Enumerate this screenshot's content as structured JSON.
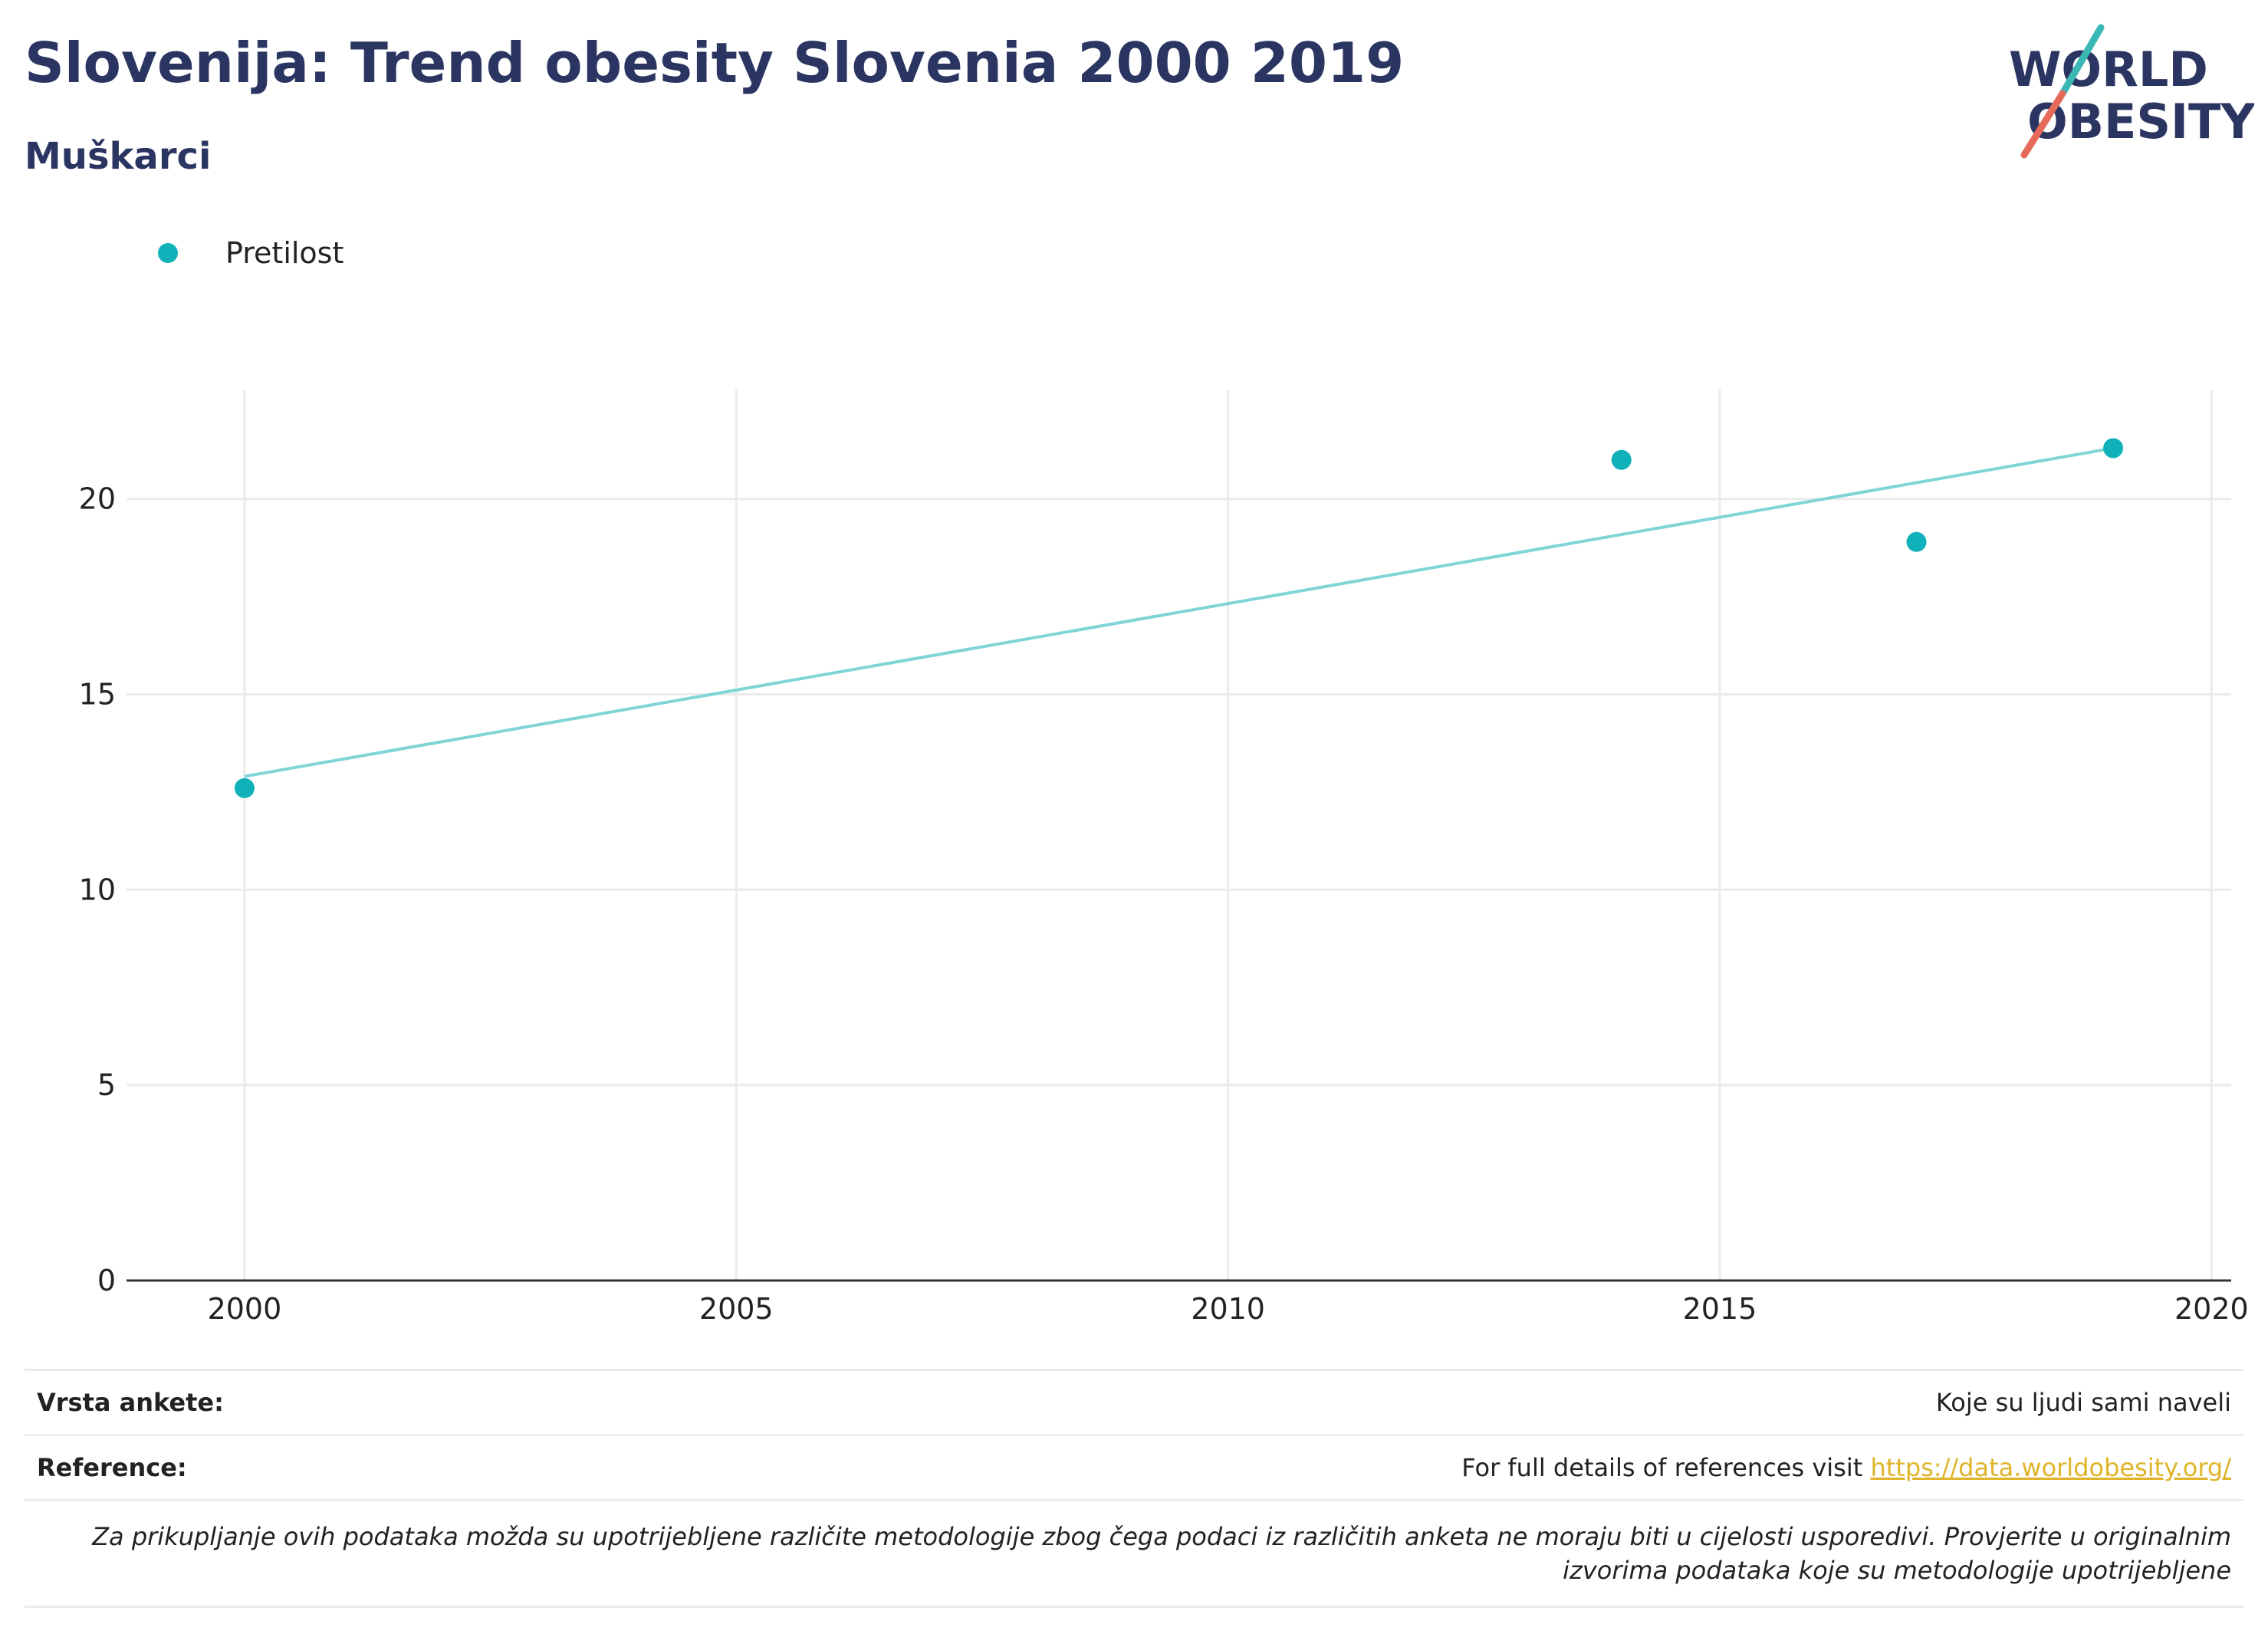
{
  "header": {
    "title": "Slovenija: Trend obesity Slovenia 2000 2019",
    "subtitle": "Muškarci"
  },
  "logo": {
    "line1": "WORLD",
    "line2": "OBESITY",
    "colors": {
      "text": "#2b3562",
      "teal": "#3bb8b4",
      "coral": "#e56a5a"
    }
  },
  "colors": {
    "series": "#10b1b8",
    "trend": "#7fd5d6",
    "grid": "#ebebeb",
    "axis": "#333333",
    "link": "#e0b42a"
  },
  "chart_data": {
    "type": "scatter",
    "series": [
      {
        "name": "Pretilost",
        "x": [
          2000,
          2014,
          2017,
          2019
        ],
        "y": [
          12.6,
          21.0,
          18.9,
          21.3
        ]
      }
    ],
    "trendline": {
      "x": [
        2000,
        2019
      ],
      "y": [
        12.9,
        21.3
      ]
    },
    "legend_position": "top-left",
    "xlim": [
      1998.8,
      2020.2
    ],
    "ylim": [
      0,
      22.8
    ],
    "xticks": [
      2000,
      2005,
      2010,
      2015,
      2020
    ],
    "yticks": [
      0,
      5,
      10,
      15,
      20
    ],
    "grid": true
  },
  "footer": {
    "survey_label": "Vrsta ankete:",
    "survey_value": "Koje su ljudi sami naveli",
    "reference_label": "Reference:",
    "reference_text": "For full details of references visit ",
    "reference_link": "https://data.worldobesity.org/",
    "note": "Za prikupljanje ovih podataka možda su upotrijebljene različite metodologije zbog čega podaci iz različitih anketa ne moraju biti u cijelosti usporedivi. Provjerite u originalnim izvorima podataka koje su metodologije upotrijebljene"
  }
}
